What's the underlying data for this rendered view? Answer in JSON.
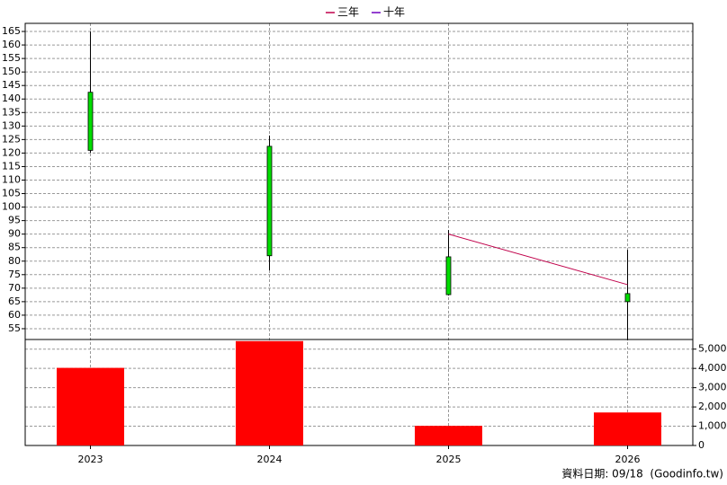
{
  "chart_data": {
    "type": "candlestick",
    "categories": [
      "2023",
      "2024",
      "2025",
      "2026"
    ],
    "ohlc": {
      "open": [
        142.5,
        122.5,
        81.6,
        68
      ],
      "high": [
        165,
        126.5,
        91.5,
        84.2
      ],
      "low": [
        120.1,
        76.6,
        67.3,
        50.7
      ],
      "close": [
        121,
        82,
        67.6,
        65
      ]
    },
    "candle_color": "#00dd00",
    "series": [
      {
        "name": "三年",
        "color": "#c0004a",
        "values": [
          null,
          null,
          90,
          71.3
        ]
      },
      {
        "name": "十年",
        "color": "#7000c0",
        "values": [
          null,
          null,
          null,
          null
        ]
      }
    ],
    "volume": {
      "color": "#ff0000",
      "values": [
        4028,
        5417,
        1019,
        1713
      ]
    },
    "ylim": [
      51,
      168
    ],
    "yticks": [
      55,
      60,
      65,
      70,
      75,
      80,
      85,
      90,
      95,
      100,
      105,
      110,
      115,
      120,
      125,
      130,
      135,
      140,
      145,
      150,
      155,
      160,
      165
    ],
    "y2lim": [
      0,
      5500
    ],
    "y2ticks": [
      0,
      {
        "value": 1000,
        "label": "1,000"
      },
      {
        "value": 2000,
        "label": "2,000"
      },
      {
        "value": 3000,
        "label": "3,000"
      },
      {
        "value": 4000,
        "label": "4,000"
      },
      {
        "value": 5000,
        "label": "5,000"
      }
    ],
    "grid": true,
    "legend_position": "top",
    "footnote": "資料日期: 09/18  (Goodinfo.tw)"
  }
}
